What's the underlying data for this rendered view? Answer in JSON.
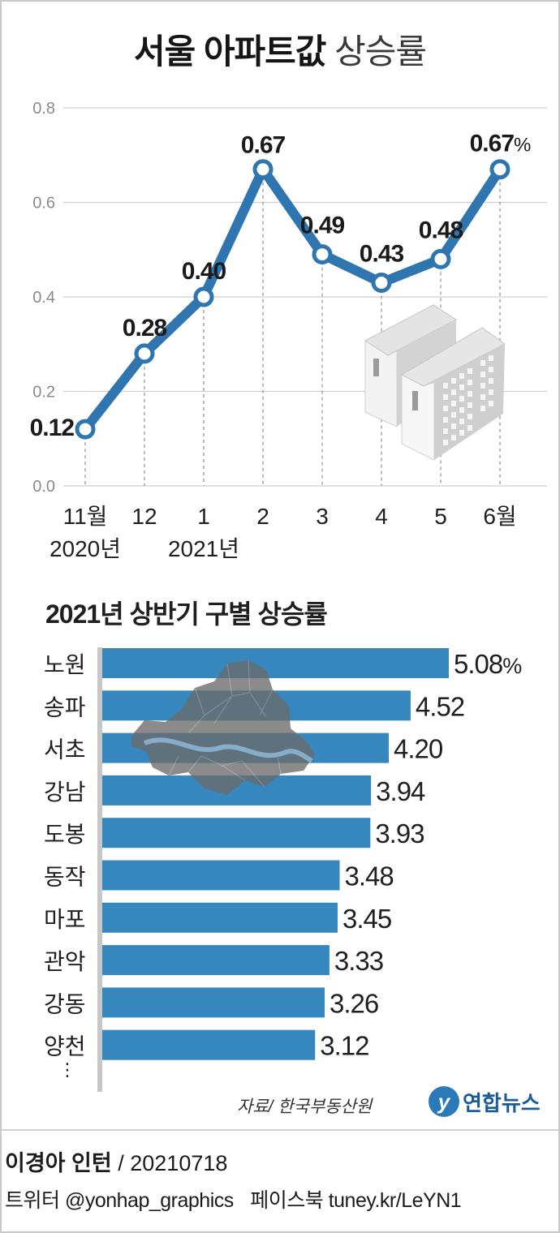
{
  "header": {
    "title_main": "서울 아파트값",
    "title_sub": "상승률"
  },
  "chart_data": [
    {
      "type": "line",
      "x_labels": [
        "11월",
        "12",
        "1",
        "2",
        "3",
        "4",
        "5",
        "6월"
      ],
      "x_sublabels": [
        "2020년",
        "",
        "2021년",
        "",
        "",
        "",
        "",
        ""
      ],
      "y_ticks": [
        "0.0",
        "0.2",
        "0.4",
        "0.6",
        "0.8"
      ],
      "ylim": [
        0,
        0.8
      ],
      "values": [
        0.12,
        0.28,
        0.4,
        0.67,
        0.49,
        0.43,
        0.48,
        0.67
      ],
      "value_labels": [
        "0.12",
        "0.28",
        "0.40",
        "0.67",
        "0.49",
        "0.43",
        "0.48",
        "0.67"
      ],
      "unit_suffix": "%",
      "grid": true,
      "line_color": "#2f75b0"
    },
    {
      "type": "bar",
      "title": "2021년 상반기 구별 상승률",
      "categories": [
        "노원",
        "송파",
        "서초",
        "강남",
        "도봉",
        "동작",
        "마포",
        "관악",
        "강동",
        "양천"
      ],
      "values": [
        5.08,
        4.52,
        4.2,
        3.94,
        3.93,
        3.48,
        3.45,
        3.33,
        3.26,
        3.12
      ],
      "value_labels": [
        "5.08",
        "4.52",
        "4.20",
        "3.94",
        "3.93",
        "3.48",
        "3.45",
        "3.33",
        "3.26",
        "3.12"
      ],
      "unit_suffix": "%",
      "more_indicator": "⋮",
      "bar_color": "#3587be"
    }
  ],
  "footer": {
    "source": "자료/ 한국부동산원",
    "logo_mark": "y",
    "logo_text": "연합뉴스",
    "author": "이경아 인턴",
    "date_sep": "/",
    "date": "20210718",
    "twitter_label": "트위터",
    "twitter_handle": "@yonhap_graphics",
    "facebook_label": "페이스북",
    "facebook_url": "tuney.kr/LeYN1"
  }
}
